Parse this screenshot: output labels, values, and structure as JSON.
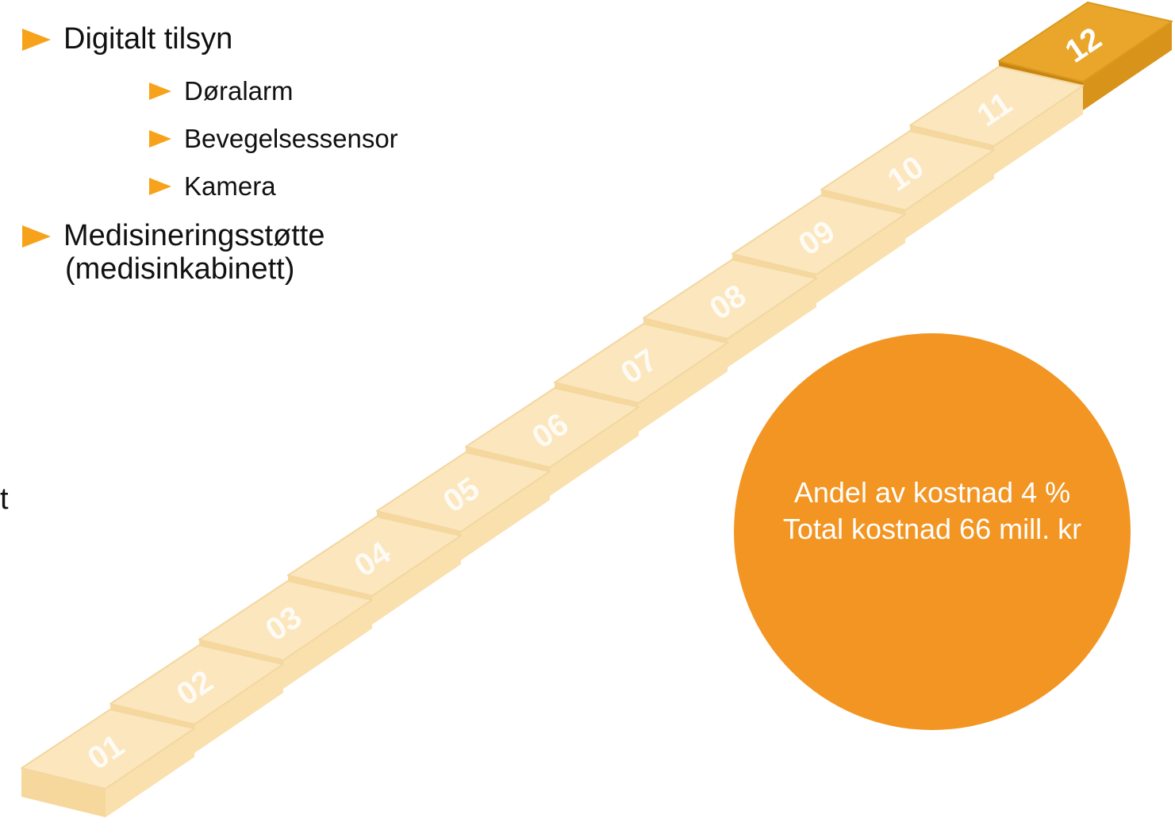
{
  "left_fragment": "t",
  "bullets": [
    {
      "text": "Digitalt tilsyn",
      "sub": [
        "Døralarm",
        "Bevegelsessensor",
        "Kamera"
      ]
    },
    {
      "lines": [
        "Medisineringsstøtte",
        "(medisinkabinett)"
      ]
    }
  ],
  "steps": [
    "01",
    "02",
    "03",
    "04",
    "05",
    "06",
    "07",
    "08",
    "09",
    "10",
    "11",
    "12"
  ],
  "circle": {
    "lines": [
      "Andel av kostnad 4 %",
      "Total kostnad 66 mill. kr"
    ]
  }
}
